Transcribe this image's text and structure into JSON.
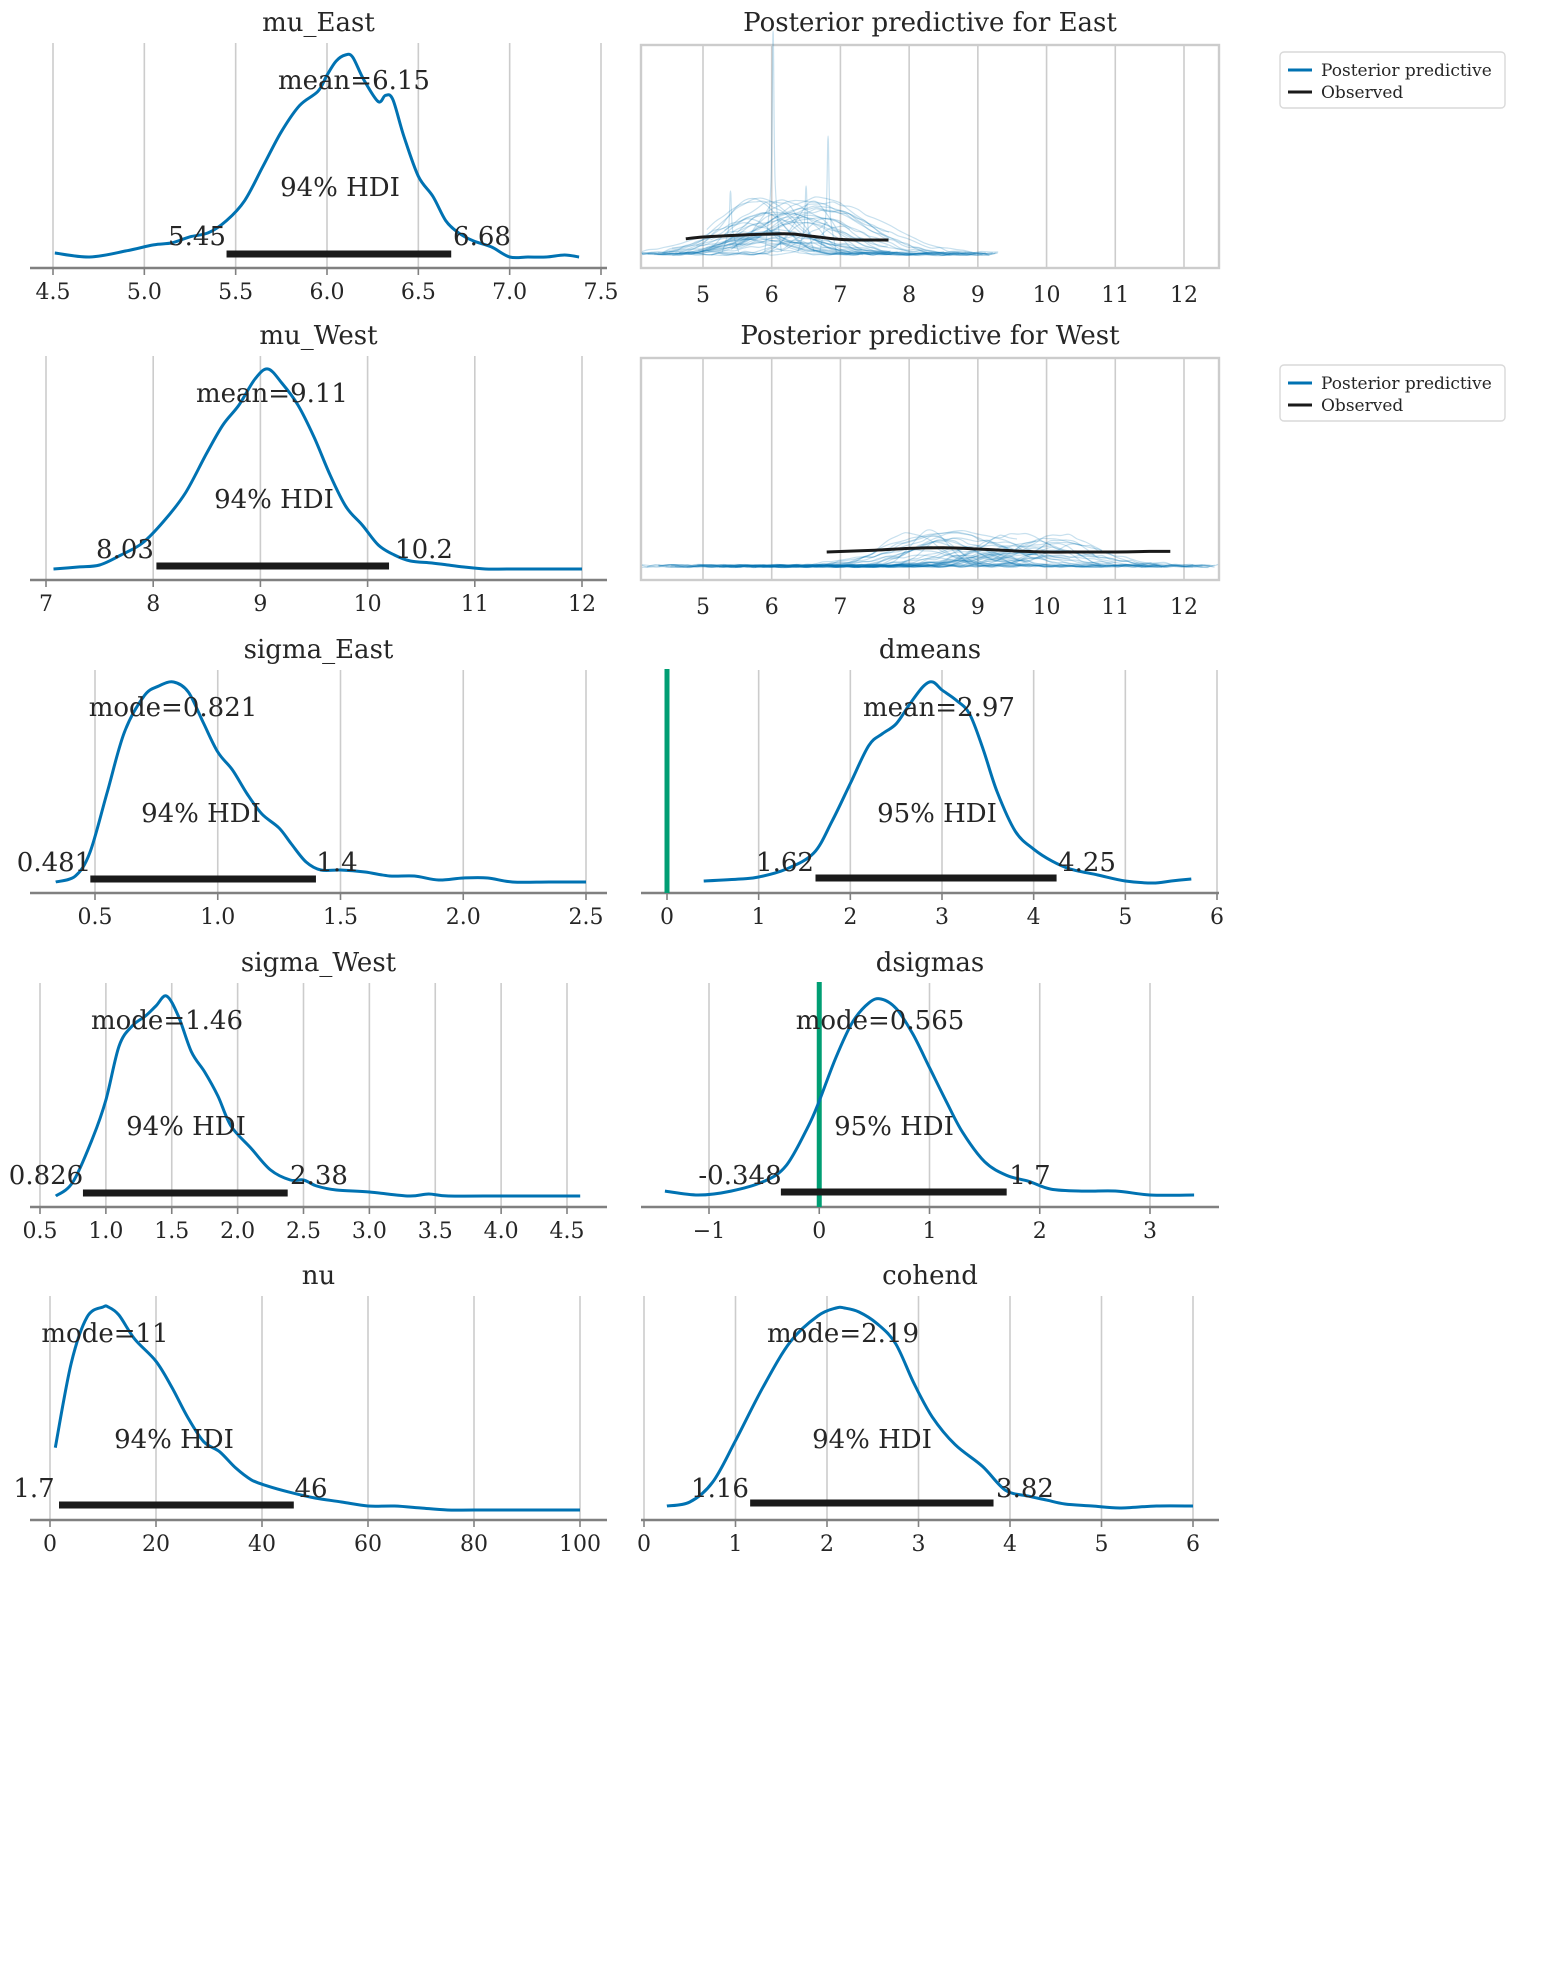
{
  "chart_data": [
    {
      "id": "mu_East",
      "type": "area",
      "title": "mu_East",
      "xlim": [
        4.5,
        7.45
      ],
      "ticks": [
        4.5,
        5.0,
        5.5,
        6.0,
        6.5,
        7.0,
        7.5
      ],
      "tick_labels": [
        "4.5",
        "5.0",
        "5.5",
        "6.0",
        "6.5",
        "7.0",
        "7.5"
      ],
      "point_estimate": "mean=6.15",
      "hdi_label": "94% HDI",
      "hdi": [
        5.45,
        6.68
      ],
      "hdi_labels": [
        "5.45",
        "6.68"
      ],
      "density_x": [
        4.51,
        4.7,
        4.9,
        5.05,
        5.15,
        5.25,
        5.35,
        5.45,
        5.55,
        5.65,
        5.75,
        5.85,
        5.95,
        6.0,
        6.05,
        6.1,
        6.14,
        6.2,
        6.28,
        6.32,
        6.36,
        6.42,
        6.5,
        6.58,
        6.65,
        6.72,
        6.8,
        6.9,
        7.0,
        7.1,
        7.2,
        7.3,
        7.38
      ],
      "density_y": [
        0.02,
        0.0,
        0.03,
        0.06,
        0.07,
        0.1,
        0.12,
        0.18,
        0.28,
        0.45,
        0.62,
        0.75,
        0.82,
        0.9,
        0.97,
        1.0,
        0.99,
        0.88,
        0.77,
        0.8,
        0.78,
        0.6,
        0.4,
        0.3,
        0.18,
        0.12,
        0.08,
        0.05,
        0.0,
        0.0,
        0.0,
        0.01,
        0.0
      ],
      "reference_line": null
    },
    {
      "id": "pp_East",
      "type": "line",
      "title": "Posterior predictive for East",
      "xlim": [
        4.1,
        12.5
      ],
      "ticks": [
        5,
        6,
        7,
        8,
        9,
        10,
        11,
        12
      ],
      "tick_labels": [
        "5",
        "6",
        "7",
        "8",
        "9",
        "10",
        "11",
        "12"
      ],
      "legend": [
        "Posterior predictive",
        "Observed"
      ],
      "legend_position": "upper right",
      "observed_x": [
        4.75,
        5.0,
        5.5,
        6.0,
        6.3,
        6.6,
        7.0,
        7.3,
        7.7
      ],
      "observed_y": [
        0.12,
        0.15,
        0.18,
        0.2,
        0.2,
        0.16,
        0.11,
        0.1,
        0.1
      ]
    },
    {
      "id": "mu_West",
      "type": "area",
      "title": "mu_West",
      "xlim": [
        7.05,
        12.0
      ],
      "ticks": [
        7,
        8,
        9,
        10,
        11,
        12
      ],
      "tick_labels": [
        "7",
        "8",
        "9",
        "10",
        "11",
        "12"
      ],
      "point_estimate": "mean=9.11",
      "hdi_label": "94% HDI",
      "hdi": [
        8.03,
        10.2
      ],
      "hdi_labels": [
        "8.03",
        "10.2"
      ],
      "density_x": [
        7.07,
        7.3,
        7.5,
        7.7,
        7.9,
        8.1,
        8.3,
        8.5,
        8.65,
        8.8,
        8.95,
        9.07,
        9.2,
        9.35,
        9.5,
        9.65,
        9.8,
        9.95,
        10.1,
        10.25,
        10.4,
        10.6,
        10.75,
        10.9,
        11.1,
        11.3,
        11.6,
        12.0
      ],
      "density_y": [
        0.0,
        0.01,
        0.02,
        0.07,
        0.13,
        0.24,
        0.38,
        0.58,
        0.72,
        0.82,
        0.95,
        1.0,
        0.93,
        0.82,
        0.66,
        0.47,
        0.31,
        0.22,
        0.12,
        0.07,
        0.04,
        0.03,
        0.02,
        0.01,
        0.0,
        0.0,
        0.0,
        0.0
      ],
      "reference_line": null
    },
    {
      "id": "pp_West",
      "type": "line",
      "title": "Posterior predictive for West",
      "xlim": [
        4.1,
        12.5
      ],
      "ticks": [
        5,
        6,
        7,
        8,
        9,
        10,
        11,
        12
      ],
      "tick_labels": [
        "5",
        "6",
        "7",
        "8",
        "9",
        "10",
        "11",
        "12"
      ],
      "legend": [
        "Posterior predictive",
        "Observed"
      ],
      "legend_position": "upper right",
      "observed_x": [
        6.8,
        7.5,
        8.0,
        8.5,
        9.0,
        9.5,
        10.0,
        10.5,
        11.0,
        11.5,
        11.8
      ],
      "observed_y": [
        0.1,
        0.13,
        0.16,
        0.17,
        0.15,
        0.12,
        0.1,
        0.1,
        0.1,
        0.11,
        0.11
      ]
    },
    {
      "id": "sigma_East",
      "type": "area",
      "title": "sigma_East",
      "xlim": [
        0.33,
        2.5
      ],
      "ticks": [
        0.5,
        1.0,
        1.5,
        2.0,
        2.5
      ],
      "tick_labels": [
        "0.5",
        "1.0",
        "1.5",
        "2.0",
        "2.5"
      ],
      "point_estimate": "mode=0.821",
      "hdi_label": "94% HDI",
      "hdi": [
        0.481,
        1.4
      ],
      "hdi_labels": [
        "0.481",
        "1.4"
      ],
      "density_x": [
        0.34,
        0.42,
        0.48,
        0.55,
        0.62,
        0.7,
        0.76,
        0.82,
        0.88,
        0.94,
        1.0,
        1.06,
        1.12,
        1.18,
        1.25,
        1.3,
        1.36,
        1.42,
        1.5,
        1.6,
        1.7,
        1.8,
        1.9,
        2.0,
        2.1,
        2.2,
        2.35,
        2.5
      ],
      "density_y": [
        0.0,
        0.03,
        0.15,
        0.45,
        0.75,
        0.93,
        0.98,
        1.0,
        0.95,
        0.8,
        0.65,
        0.56,
        0.44,
        0.34,
        0.27,
        0.19,
        0.1,
        0.06,
        0.06,
        0.05,
        0.03,
        0.03,
        0.01,
        0.02,
        0.02,
        0.0,
        0.0,
        0.0
      ],
      "reference_line": null
    },
    {
      "id": "dmeans",
      "type": "area",
      "title": "dmeans",
      "xlim": [
        -0.1,
        6.0
      ],
      "ticks": [
        0,
        1,
        2,
        3,
        4,
        5,
        6
      ],
      "tick_labels": [
        "0",
        "1",
        "2",
        "3",
        "4",
        "5",
        "6"
      ],
      "point_estimate": "mean=2.97",
      "hdi_label": "95% HDI",
      "hdi": [
        1.62,
        4.25
      ],
      "hdi_labels": [
        "1.62",
        "4.25"
      ],
      "density_x": [
        0.4,
        0.8,
        1.0,
        1.3,
        1.6,
        1.8,
        2.0,
        2.2,
        2.35,
        2.5,
        2.65,
        2.8,
        2.9,
        3.0,
        3.15,
        3.3,
        3.45,
        3.6,
        3.8,
        4.0,
        4.2,
        4.4,
        4.7,
        5.0,
        5.3,
        5.5,
        5.72
      ],
      "density_y": [
        0.0,
        0.01,
        0.02,
        0.06,
        0.14,
        0.3,
        0.49,
        0.68,
        0.74,
        0.79,
        0.89,
        0.98,
        1.0,
        0.96,
        0.91,
        0.84,
        0.66,
        0.45,
        0.25,
        0.16,
        0.1,
        0.06,
        0.03,
        0.0,
        -0.01,
        0.0,
        0.01
      ],
      "reference_line": 0
    },
    {
      "id": "sigma_West",
      "type": "area",
      "title": "sigma_West",
      "xlim": [
        0.3,
        4.6
      ],
      "ticks": [
        0.5,
        1.0,
        1.5,
        2.0,
        2.5,
        3.0,
        3.5,
        4.0,
        4.5
      ],
      "tick_labels": [
        "0.5",
        "1.0",
        "1.5",
        "2.0",
        "2.5",
        "3.0",
        "3.5",
        "4.0",
        "4.5"
      ],
      "point_estimate": "mode=1.46",
      "hdi_label": "94% HDI",
      "hdi": [
        0.826,
        2.38
      ],
      "hdi_labels": [
        "0.826",
        "2.38"
      ],
      "density_x": [
        0.62,
        0.75,
        0.9,
        1.0,
        1.1,
        1.2,
        1.3,
        1.38,
        1.46,
        1.55,
        1.65,
        1.75,
        1.85,
        1.95,
        2.1,
        2.25,
        2.4,
        2.5,
        2.6,
        2.75,
        3.0,
        3.3,
        3.45,
        3.6,
        4.0,
        4.3,
        4.6
      ],
      "density_y": [
        0.0,
        0.07,
        0.29,
        0.48,
        0.75,
        0.85,
        0.9,
        0.95,
        1.0,
        0.9,
        0.72,
        0.62,
        0.5,
        0.35,
        0.24,
        0.13,
        0.08,
        0.08,
        0.05,
        0.03,
        0.02,
        0.0,
        0.01,
        0.0,
        0.0,
        0.0,
        0.0
      ],
      "reference_line": null
    },
    {
      "id": "dsigmas",
      "type": "area",
      "title": "dsigmas",
      "xlim": [
        -1.5,
        3.6
      ],
      "ticks": [
        -1,
        0,
        1,
        2,
        3
      ],
      "tick_labels": [
        "−1",
        "0",
        "1",
        "2",
        "3"
      ],
      "point_estimate": "mode=0.565",
      "hdi_label": "95% HDI",
      "hdi": [
        -0.348,
        1.7
      ],
      "hdi_labels": [
        "-0.348",
        "1.7"
      ],
      "density_x": [
        -1.4,
        -1.1,
        -0.8,
        -0.5,
        -0.3,
        -0.1,
        0.0,
        0.15,
        0.3,
        0.45,
        0.56,
        0.7,
        0.85,
        1.0,
        1.15,
        1.3,
        1.5,
        1.7,
        1.9,
        2.1,
        2.4,
        2.7,
        3.0,
        3.4
      ],
      "density_y": [
        0.02,
        0.0,
        0.02,
        0.07,
        0.15,
        0.35,
        0.48,
        0.7,
        0.88,
        0.98,
        1.0,
        0.95,
        0.82,
        0.65,
        0.48,
        0.32,
        0.17,
        0.1,
        0.07,
        0.03,
        0.02,
        0.02,
        0.0,
        0.0
      ],
      "reference_line": 0
    },
    {
      "id": "nu",
      "type": "area",
      "title": "nu",
      "xlim": [
        -2,
        100
      ],
      "ticks": [
        0,
        20,
        40,
        60,
        80,
        100
      ],
      "tick_labels": [
        "0",
        "20",
        "40",
        "60",
        "80",
        "100"
      ],
      "point_estimate": "mode=11",
      "hdi_label": "94% HDI",
      "hdi": [
        1.7,
        46
      ],
      "hdi_labels": [
        "1.7",
        "46"
      ],
      "density_x": [
        1,
        4,
        7,
        10,
        11,
        13,
        16,
        20,
        23,
        26,
        29,
        32,
        35,
        38,
        41,
        45,
        50,
        55,
        60,
        65,
        70,
        75,
        80,
        90,
        100
      ],
      "density_y": [
        0.3,
        0.72,
        0.95,
        1.0,
        1.0,
        0.96,
        0.84,
        0.73,
        0.6,
        0.45,
        0.33,
        0.28,
        0.2,
        0.14,
        0.11,
        0.08,
        0.05,
        0.03,
        0.01,
        0.01,
        0.0,
        -0.01,
        -0.01,
        -0.01,
        -0.01
      ],
      "reference_line": null
    },
    {
      "id": "cohend",
      "type": "area",
      "title": "cohend",
      "xlim": [
        -0.05,
        6.0
      ],
      "ticks": [
        0,
        1,
        2,
        3,
        4,
        5,
        6
      ],
      "tick_labels": [
        "0",
        "1",
        "2",
        "3",
        "4",
        "5",
        "6"
      ],
      "point_estimate": "mode=2.19",
      "hdi_label": "94% HDI",
      "hdi": [
        1.16,
        3.82
      ],
      "hdi_labels": [
        "1.16",
        "3.82"
      ],
      "density_x": [
        0.25,
        0.5,
        0.75,
        1.0,
        1.3,
        1.6,
        1.9,
        2.1,
        2.19,
        2.35,
        2.55,
        2.75,
        2.95,
        3.15,
        3.4,
        3.7,
        3.95,
        4.2,
        4.4,
        4.6,
        4.9,
        5.2,
        5.6,
        6.0
      ],
      "density_y": [
        0.0,
        0.02,
        0.12,
        0.33,
        0.6,
        0.83,
        0.96,
        1.0,
        1.0,
        0.98,
        0.92,
        0.82,
        0.62,
        0.45,
        0.31,
        0.2,
        0.08,
        0.05,
        0.03,
        0.01,
        0.0,
        -0.01,
        0.0,
        0.0
      ],
      "reference_line": null
    }
  ]
}
